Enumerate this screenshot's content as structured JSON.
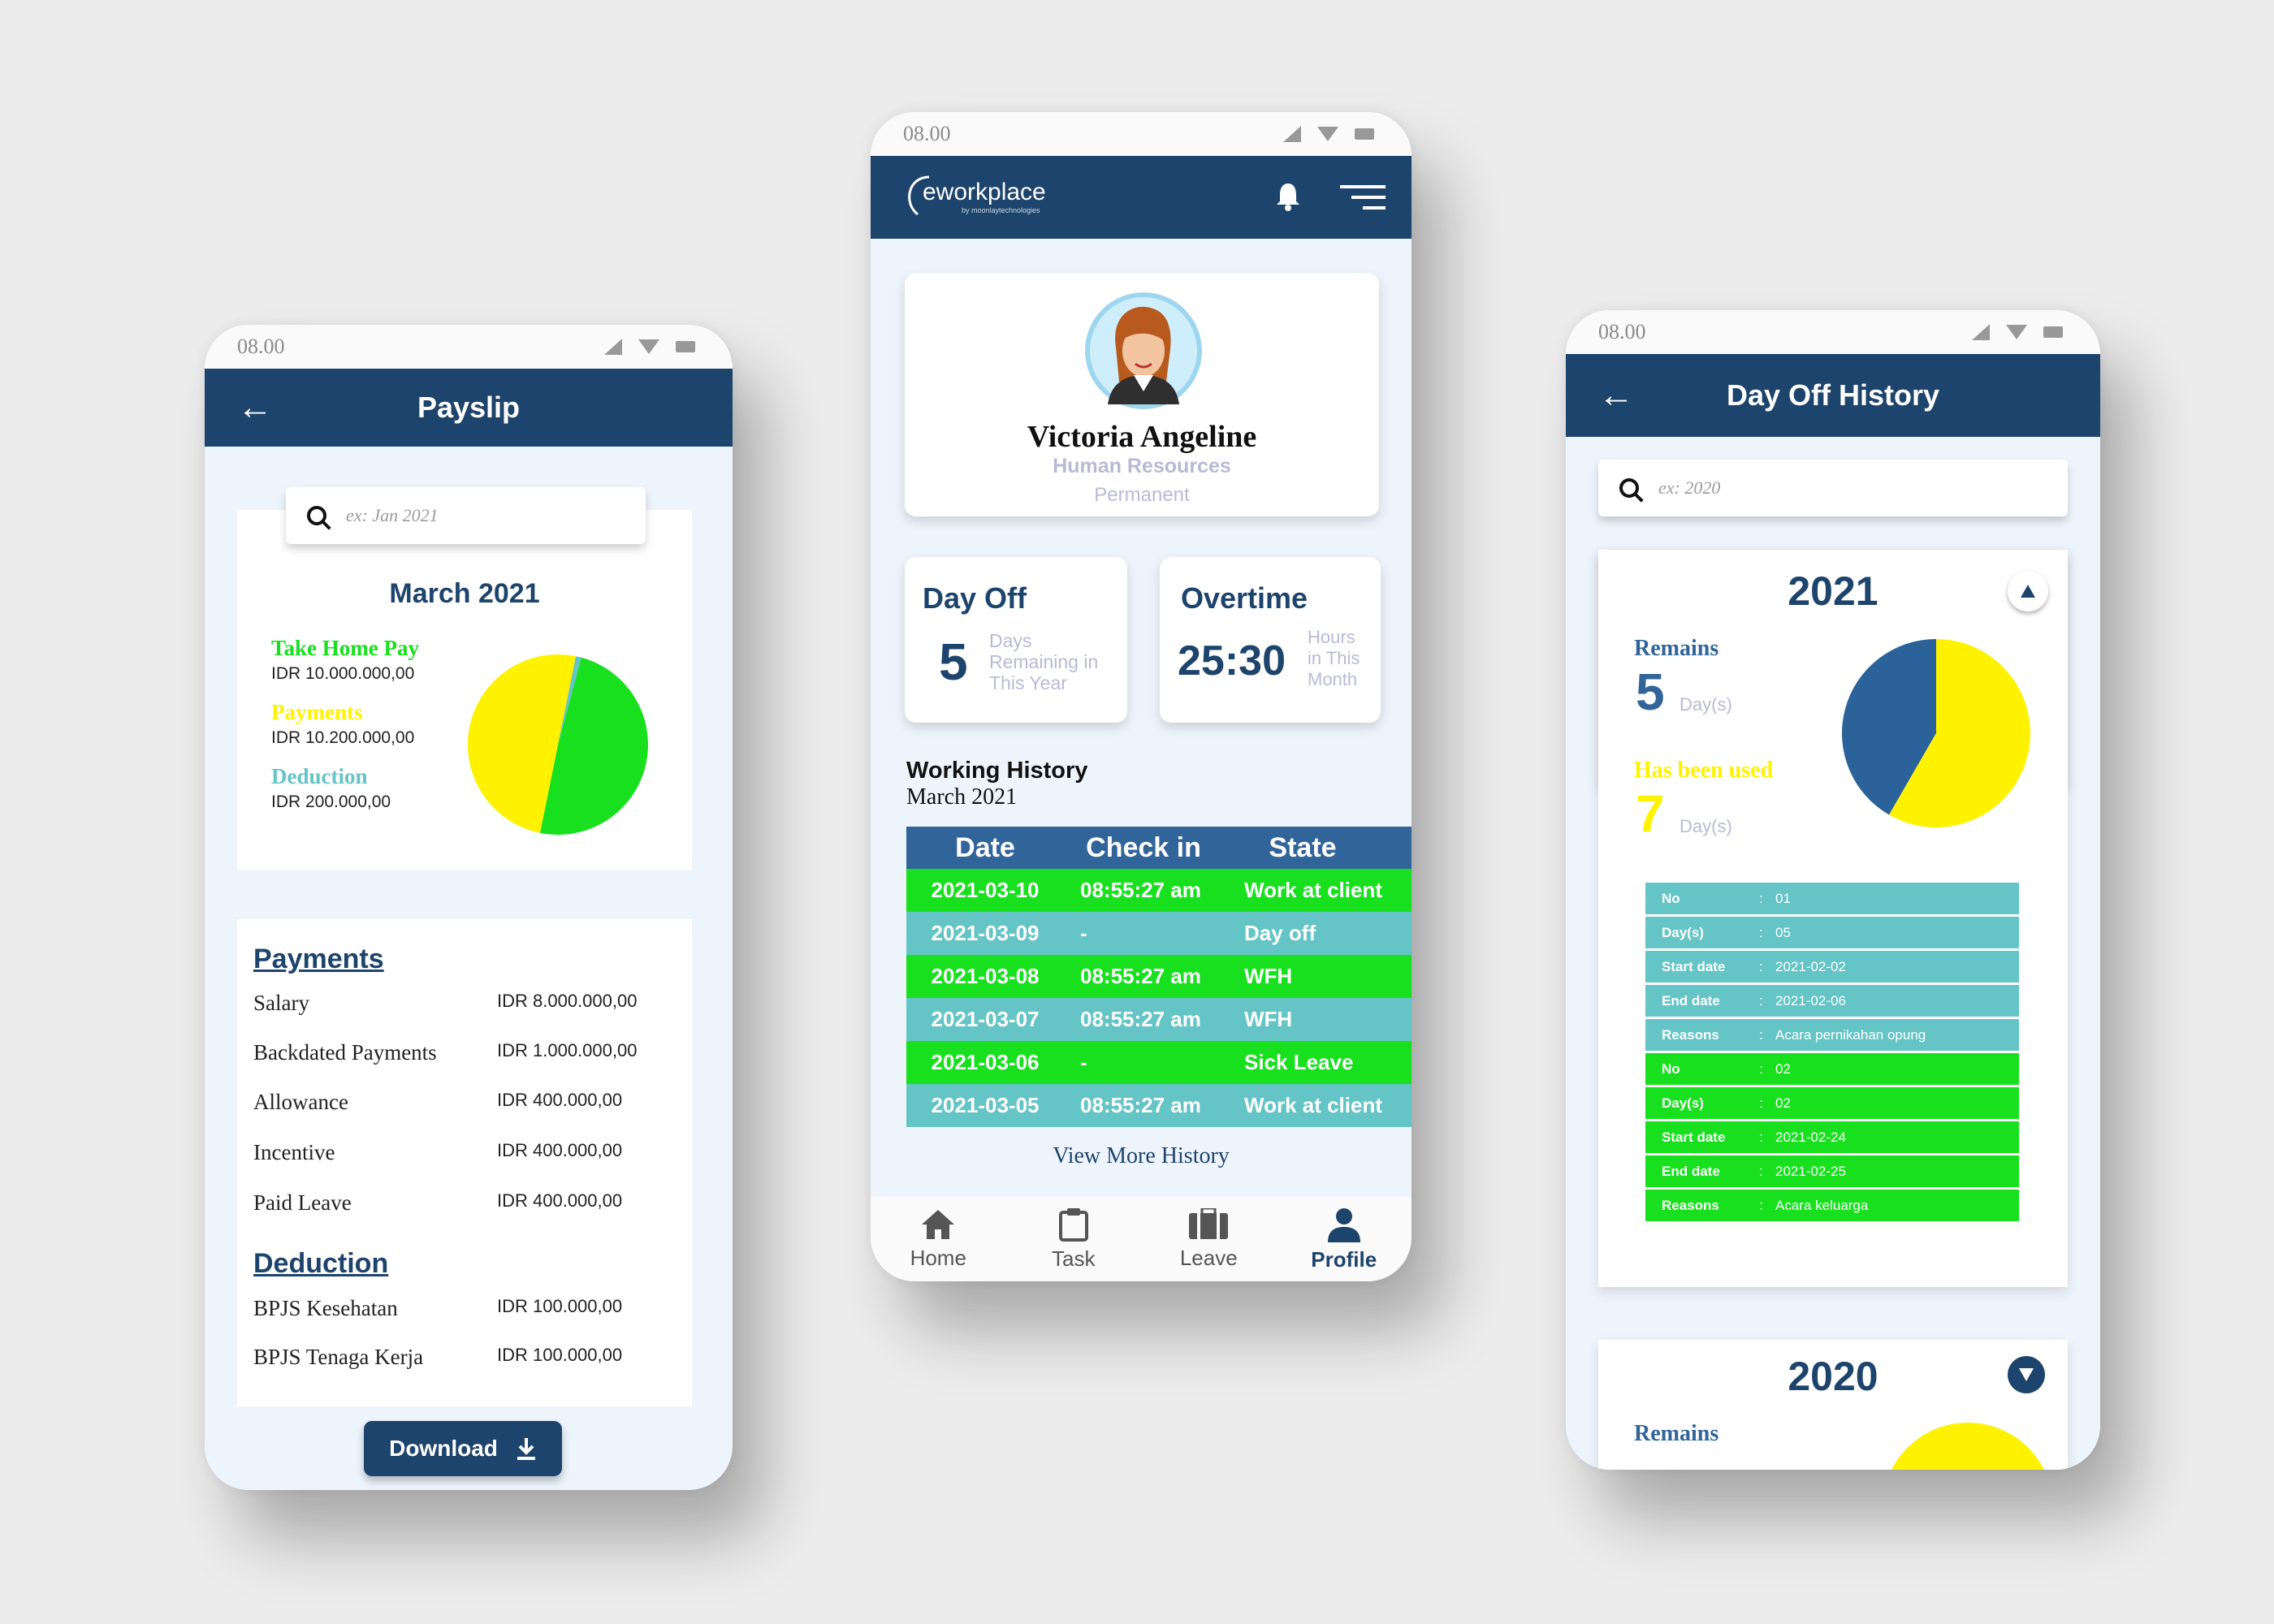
{
  "colors": {
    "navy": "#1d446c",
    "green": "#18e01e",
    "teal": "#64c4c6",
    "yellow": "#fff200",
    "pie_blue": "#2c629a"
  },
  "payslip": {
    "status_time": "08.00",
    "title": "Payslip",
    "search_placeholder": "ex: Jan 2021",
    "month": "March 2021",
    "legend": [
      {
        "label": "Take Home Pay",
        "value": "IDR 10.000.000,00",
        "color": "#18e01e"
      },
      {
        "label": "Payments",
        "value": "IDR 10.200.000,00",
        "color": "#fff200"
      },
      {
        "label": "Deduction",
        "value": "IDR 200.000,00",
        "color": "#64c4c6"
      }
    ],
    "pie": {
      "slices": [
        {
          "label": "Take Home Pay",
          "value": 10000000
        },
        {
          "label": "Payments",
          "value": 10200000
        },
        {
          "label": "Deduction",
          "value": 200000
        }
      ]
    },
    "payments_title": "Payments",
    "payments": [
      {
        "label": "Salary",
        "value": "IDR 8.000.000,00"
      },
      {
        "label": "Backdated Payments",
        "value": "IDR 1.000.000,00"
      },
      {
        "label": "Allowance",
        "value": "IDR 400.000,00"
      },
      {
        "label": "Incentive",
        "value": "IDR 400.000,00"
      },
      {
        "label": "Paid Leave",
        "value": "IDR 400.000,00"
      }
    ],
    "deduction_title": "Deduction",
    "deductions": [
      {
        "label": "BPJS Kesehatan",
        "value": "IDR 100.000,00"
      },
      {
        "label": "BPJS Tenaga Kerja",
        "value": "IDR 100.000,00"
      }
    ],
    "download_label": "Download"
  },
  "dashboard": {
    "status_time": "08.00",
    "brand": "eworkplace",
    "brand_sub": "by moonlaytechnologies",
    "profile": {
      "name": "Victoria Angeline",
      "department": "Human Resources",
      "status": "Permanent"
    },
    "day_off": {
      "title": "Day Off",
      "value": "5",
      "caption": "Days Remaining in This Year"
    },
    "overtime": {
      "title": "Overtime",
      "value": "25:30",
      "caption": "Hours in This Month"
    },
    "history_title": "Working History",
    "history_month": "March 2021",
    "table_headers": [
      "Date",
      "Check in",
      "State"
    ],
    "table_rows": [
      {
        "date": "2021-03-10",
        "checkin": "08:55:27 am",
        "state": "Work at client"
      },
      {
        "date": "2021-03-09",
        "checkin": "-",
        "state": "Day off"
      },
      {
        "date": "2021-03-08",
        "checkin": "08:55:27 am",
        "state": "WFH"
      },
      {
        "date": "2021-03-07",
        "checkin": "08:55:27 am",
        "state": "WFH"
      },
      {
        "date": "2021-03-06",
        "checkin": "-",
        "state": "Sick Leave"
      },
      {
        "date": "2021-03-05",
        "checkin": "08:55:27 am",
        "state": "Work at client"
      }
    ],
    "view_more": "View More History",
    "nav": [
      {
        "label": "Home",
        "icon": "home-icon"
      },
      {
        "label": "Task",
        "icon": "clipboard-icon"
      },
      {
        "label": "Leave",
        "icon": "luggage-icon"
      },
      {
        "label": "Profile",
        "icon": "person-icon",
        "active": true
      }
    ]
  },
  "dayoff": {
    "status_time": "08.00",
    "title": "Day Off History",
    "search_placeholder": "ex: 2020",
    "year_2021": {
      "year": "2021",
      "remains_label": "Remains",
      "remains_value": "5",
      "remains_unit": "Day(s)",
      "used_label": "Has been used",
      "used_value": "7",
      "used_unit": "Day(s)",
      "pie": {
        "slices": [
          {
            "label": "Remains",
            "value": 5
          },
          {
            "label": "Has been used",
            "value": 7
          }
        ]
      },
      "records": [
        {
          "rows": [
            [
              "No",
              "01"
            ],
            [
              "Day(s)",
              "05"
            ],
            [
              "Start date",
              "2021-02-02"
            ],
            [
              "End date",
              "2021-02-06"
            ],
            [
              "Reasons",
              "Acara pernikahan opung"
            ]
          ]
        },
        {
          "rows": [
            [
              "No",
              "02"
            ],
            [
              "Day(s)",
              "02"
            ],
            [
              "Start date",
              "2021-02-24"
            ],
            [
              "End date",
              "2021-02-25"
            ],
            [
              "Reasons",
              "Acara keluarga"
            ]
          ]
        }
      ]
    },
    "year_2020": {
      "year": "2020",
      "remains_label": "Remains"
    }
  }
}
